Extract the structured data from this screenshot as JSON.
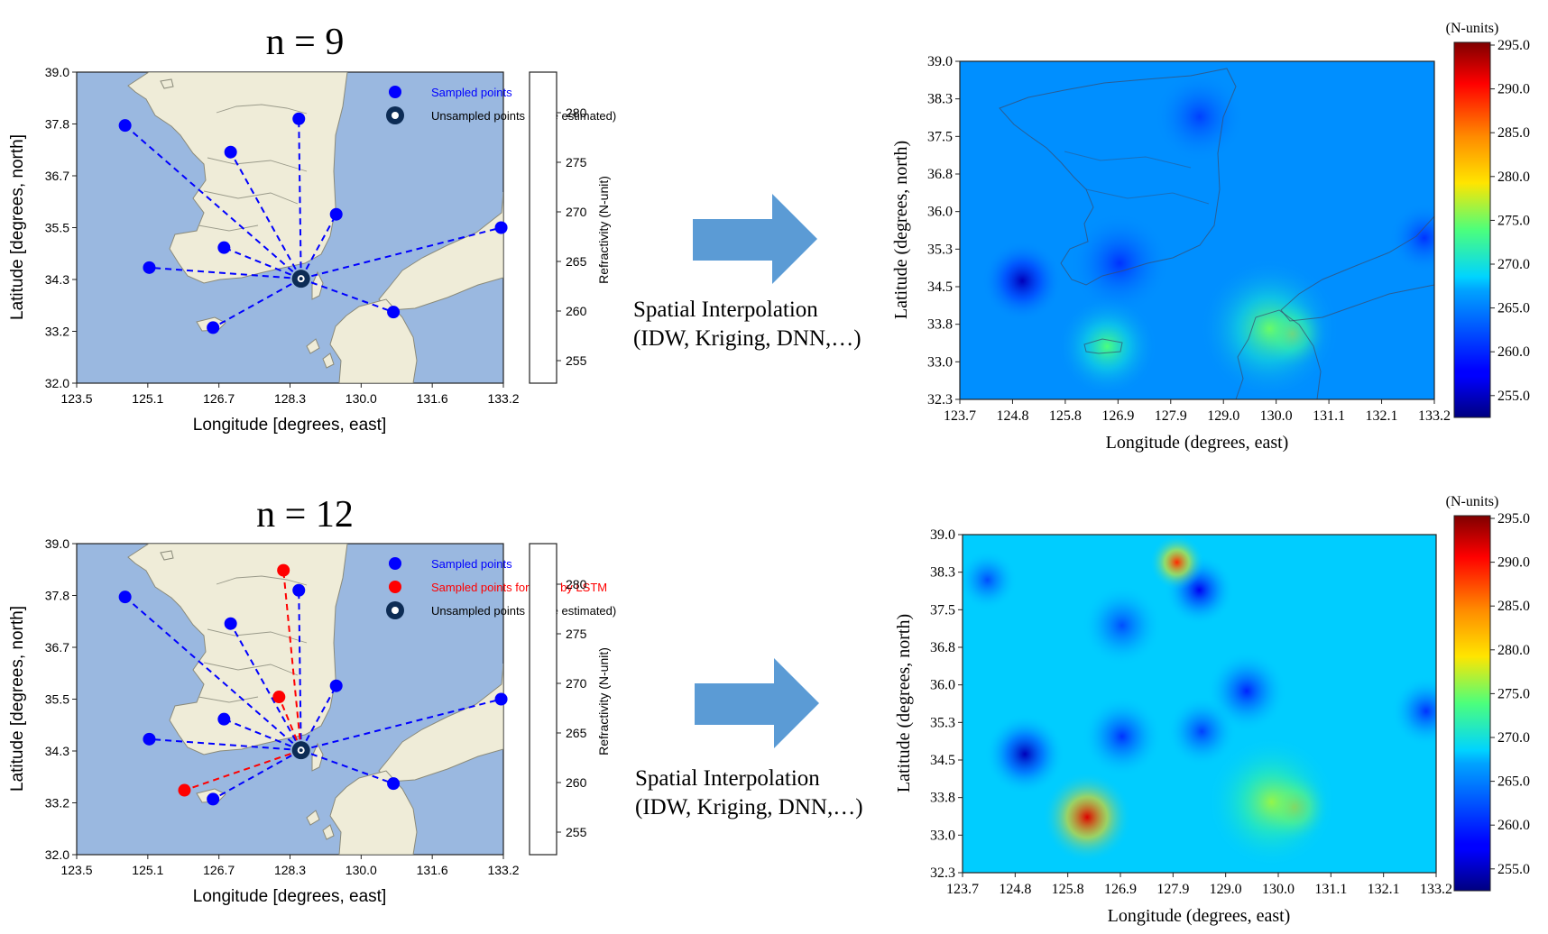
{
  "colors": {
    "sea": "#9ab8e0",
    "land": "#efecd8",
    "coast": "#7d7d70",
    "sampled": "#0000ff",
    "forecast": "#ff0000",
    "unsampled": "#0d2c55",
    "arrow": "#5b9bd5"
  },
  "rows": [
    {
      "title": "n = 9",
      "map": {
        "xlabel": "Longitude [degrees, east]",
        "ylabel": "Latitude [degrees, north]",
        "xticks": [
          "123.5",
          "125.1",
          "126.7",
          "128.3",
          "130.0",
          "131.6",
          "133.2"
        ],
        "yticks": [
          "39.0",
          "37.8",
          "36.7",
          "35.5",
          "34.3",
          "33.2",
          "32.0"
        ],
        "legend": [
          {
            "label": "Sampled points",
            "kind": "sampled"
          },
          {
            "label": "Unsampled points (to be estimated)",
            "kind": "unsampled"
          }
        ],
        "colorbar_label": "Refractivity (N-unit)",
        "colorbar_ticks": [
          "280",
          "275",
          "270",
          "265",
          "260",
          "255"
        ],
        "target": {
          "lon": 128.6,
          "lat": 34.35
        },
        "sampled_points": [
          {
            "lon": 124.6,
            "lat": 37.8
          },
          {
            "lon": 127.0,
            "lat": 37.2
          },
          {
            "lon": 128.55,
            "lat": 37.95
          },
          {
            "lon": 129.4,
            "lat": 35.8
          },
          {
            "lon": 126.85,
            "lat": 35.05
          },
          {
            "lon": 125.15,
            "lat": 34.6
          },
          {
            "lon": 126.6,
            "lat": 33.25
          },
          {
            "lon": 130.7,
            "lat": 33.6
          },
          {
            "lon": 133.15,
            "lat": 35.5
          }
        ],
        "forecast_points": []
      },
      "method_label_1": "Spatial Interpolation",
      "method_label_2": "(IDW, Kriging, DNN,…)",
      "heat": {
        "xlabel": "Longitude (degrees, east)",
        "ylabel": "Latitude (degrees, north)",
        "xticks": [
          "123.7",
          "124.8",
          "125.8",
          "126.9",
          "127.9",
          "129.0",
          "130.0",
          "131.1",
          "132.1",
          "133.2"
        ],
        "yticks": [
          "39.0",
          "38.3",
          "37.5",
          "36.8",
          "36.0",
          "35.3",
          "34.5",
          "33.8",
          "33.0",
          "32.3"
        ],
        "colorbar_title": "(N-units)",
        "colorbar_ticks": [
          "295.0",
          "290.0",
          "285.0",
          "280.0",
          "275.0",
          "270.0",
          "265.0",
          "260.0",
          "255.0"
        ],
        "base_level": 0.31,
        "features": [
          {
            "lon": 124.95,
            "lat": 34.65,
            "level": 0.05,
            "radius": 0.8
          },
          {
            "lon": 126.9,
            "lat": 35.0,
            "level": 0.18,
            "radius": 1.0
          },
          {
            "lon": 128.5,
            "lat": 37.9,
            "level": 0.2,
            "radius": 0.9
          },
          {
            "lon": 133.0,
            "lat": 35.5,
            "level": 0.18,
            "radius": 0.7
          },
          {
            "lon": 126.65,
            "lat": 33.35,
            "level": 0.5,
            "radius": 1.0
          },
          {
            "lon": 130.35,
            "lat": 33.6,
            "level": 0.7,
            "radius": 0.7
          },
          {
            "lon": 129.9,
            "lat": 33.7,
            "level": 0.52,
            "radius": 1.4
          }
        ]
      }
    },
    {
      "title": "n = 12",
      "map": {
        "xlabel": "Longitude [degrees, east]",
        "ylabel": "Latitude [degrees, north]",
        "xticks": [
          "123.5",
          "125.1",
          "126.7",
          "128.3",
          "130.0",
          "131.6",
          "133.2"
        ],
        "yticks": [
          "39.0",
          "37.8",
          "36.7",
          "35.5",
          "34.3",
          "33.2",
          "32.0"
        ],
        "legend": [
          {
            "label": "Sampled points",
            "kind": "sampled"
          },
          {
            "label": "Sampled points forecast by LSTM",
            "kind": "forecast"
          },
          {
            "label": "Unsampled points (to be estimated)",
            "kind": "unsampled"
          }
        ],
        "colorbar_label": "Refractivity (N-unit)",
        "colorbar_ticks": [
          "280",
          "275",
          "270",
          "265",
          "260",
          "255"
        ],
        "target": {
          "lon": 128.6,
          "lat": 34.35
        },
        "sampled_points": [
          {
            "lon": 124.6,
            "lat": 37.8
          },
          {
            "lon": 127.0,
            "lat": 37.2
          },
          {
            "lon": 128.55,
            "lat": 37.95
          },
          {
            "lon": 129.4,
            "lat": 35.8
          },
          {
            "lon": 126.85,
            "lat": 35.05
          },
          {
            "lon": 125.15,
            "lat": 34.6
          },
          {
            "lon": 126.6,
            "lat": 33.25
          },
          {
            "lon": 130.7,
            "lat": 33.6
          },
          {
            "lon": 133.15,
            "lat": 35.5
          }
        ],
        "forecast_points": [
          {
            "lon": 128.2,
            "lat": 38.4
          },
          {
            "lon": 128.1,
            "lat": 35.55
          },
          {
            "lon": 125.95,
            "lat": 33.45
          }
        ]
      },
      "method_label_1": "Spatial Interpolation",
      "method_label_2": "(IDW, Kriging, DNN,…)",
      "heat": {
        "xlabel": "Longitude (degrees, east)",
        "ylabel": "Latitude (degrees, north)",
        "xticks": [
          "123.7",
          "124.8",
          "125.8",
          "126.9",
          "127.9",
          "129.0",
          "130.0",
          "131.1",
          "132.1",
          "133.2"
        ],
        "yticks": [
          "39.0",
          "38.3",
          "37.5",
          "36.8",
          "36.0",
          "35.3",
          "34.5",
          "33.8",
          "33.0",
          "32.3"
        ],
        "colorbar_title": "(N-units)",
        "colorbar_ticks": [
          "295.0",
          "290.0",
          "285.0",
          "280.0",
          "275.0",
          "270.0",
          "265.0",
          "260.0",
          "255.0"
        ],
        "base_level": 0.37,
        "features": [
          {
            "lon": 124.95,
            "lat": 34.65,
            "level": 0.05,
            "radius": 0.8
          },
          {
            "lon": 128.45,
            "lat": 37.9,
            "level": 0.1,
            "radius": 0.7
          },
          {
            "lon": 124.2,
            "lat": 38.1,
            "level": 0.22,
            "radius": 0.6
          },
          {
            "lon": 126.9,
            "lat": 37.2,
            "level": 0.22,
            "radius": 0.8
          },
          {
            "lon": 129.4,
            "lat": 35.9,
            "level": 0.16,
            "radius": 0.8
          },
          {
            "lon": 126.9,
            "lat": 35.0,
            "level": 0.18,
            "radius": 0.8
          },
          {
            "lon": 128.5,
            "lat": 35.1,
            "level": 0.2,
            "radius": 0.7
          },
          {
            "lon": 133.0,
            "lat": 35.5,
            "level": 0.18,
            "radius": 0.7
          },
          {
            "lon": 128.0,
            "lat": 38.45,
            "level": 0.85,
            "radius": 0.55
          },
          {
            "lon": 126.2,
            "lat": 33.4,
            "level": 0.92,
            "radius": 0.9
          },
          {
            "lon": 130.35,
            "lat": 33.6,
            "level": 0.72,
            "radius": 0.7
          },
          {
            "lon": 129.9,
            "lat": 33.7,
            "level": 0.55,
            "radius": 1.3
          }
        ]
      }
    }
  ]
}
